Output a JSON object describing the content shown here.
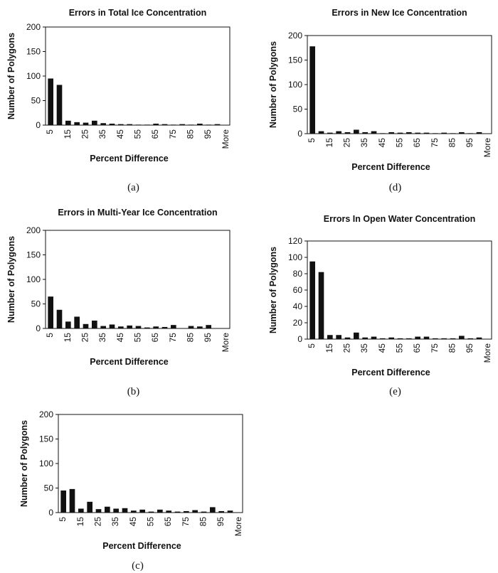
{
  "chart_data": [
    {
      "id": "a",
      "type": "bar",
      "title": "Errors in Total Ice Concentration",
      "xlabel": "Percent Difference",
      "ylabel": "Number of Polygons",
      "caption": "(a)",
      "ylim": [
        0,
        200
      ],
      "yticks": [
        0,
        50,
        100,
        150,
        200
      ],
      "xticklabels": [
        "5",
        "15",
        "25",
        "35",
        "45",
        "55",
        "65",
        "75",
        "85",
        "95",
        "More"
      ],
      "categories": [
        "5",
        "10",
        "15",
        "20",
        "25",
        "30",
        "35",
        "40",
        "45",
        "50",
        "55",
        "60",
        "65",
        "70",
        "75",
        "80",
        "85",
        "90",
        "95",
        "100",
        "More"
      ],
      "values": [
        95,
        82,
        9,
        6,
        5,
        9,
        4,
        3,
        2,
        2,
        1,
        1,
        3,
        2,
        1,
        2,
        1,
        3,
        1,
        2,
        0
      ],
      "grid": false
    },
    {
      "id": "b",
      "type": "bar",
      "title": "Errors in Multi-Year Ice Concentration",
      "xlabel": "Percent Difference",
      "ylabel": "Number of Polygons",
      "caption": "(b)",
      "ylim": [
        0,
        200
      ],
      "yticks": [
        0,
        50,
        100,
        150,
        200
      ],
      "xticklabels": [
        "5",
        "15",
        "25",
        "35",
        "45",
        "55",
        "65",
        "75",
        "85",
        "95",
        "More"
      ],
      "categories": [
        "5",
        "10",
        "15",
        "20",
        "25",
        "30",
        "35",
        "40",
        "45",
        "50",
        "55",
        "60",
        "65",
        "70",
        "75",
        "80",
        "85",
        "90",
        "95",
        "100",
        "More"
      ],
      "values": [
        65,
        38,
        14,
        24,
        9,
        16,
        5,
        8,
        4,
        6,
        5,
        2,
        4,
        3,
        7,
        0,
        5,
        4,
        7,
        0,
        0
      ],
      "grid": false
    },
    {
      "id": "c",
      "type": "bar",
      "title": "",
      "xlabel": "Percent Difference",
      "ylabel": "Number of Polygons",
      "caption": "(c)",
      "ylim": [
        0,
        200
      ],
      "yticks": [
        0,
        50,
        100,
        150,
        200
      ],
      "xticklabels": [
        "5",
        "15",
        "25",
        "35",
        "45",
        "55",
        "65",
        "75",
        "85",
        "95",
        "More"
      ],
      "categories": [
        "5",
        "10",
        "15",
        "20",
        "25",
        "30",
        "35",
        "40",
        "45",
        "50",
        "55",
        "60",
        "65",
        "70",
        "75",
        "80",
        "85",
        "90",
        "95",
        "100",
        "More"
      ],
      "values": [
        45,
        48,
        8,
        22,
        7,
        12,
        8,
        9,
        4,
        6,
        2,
        6,
        4,
        2,
        3,
        5,
        2,
        11,
        3,
        4,
        0
      ],
      "grid": false
    },
    {
      "id": "d",
      "type": "bar",
      "title": "Errors in New Ice Concentration",
      "xlabel": "Percent Difference",
      "ylabel": "Number of Polygons",
      "caption": "(d)",
      "ylim": [
        0,
        200
      ],
      "yticks": [
        0,
        50,
        100,
        150,
        200
      ],
      "xticklabels": [
        "5",
        "15",
        "25",
        "35",
        "45",
        "55",
        "65",
        "75",
        "85",
        "95",
        "More"
      ],
      "categories": [
        "5",
        "10",
        "15",
        "20",
        "25",
        "30",
        "35",
        "40",
        "45",
        "50",
        "55",
        "60",
        "65",
        "70",
        "75",
        "80",
        "85",
        "90",
        "95",
        "100",
        "More"
      ],
      "values": [
        178,
        5,
        2,
        5,
        3,
        8,
        3,
        5,
        1,
        3,
        2,
        3,
        2,
        2,
        1,
        2,
        1,
        3,
        1,
        3,
        0
      ],
      "grid": false
    },
    {
      "id": "e",
      "type": "bar",
      "title": "Errors In Open Water Concentration",
      "xlabel": "Percent Difference",
      "ylabel": "Number of Polygons",
      "caption": "(e)",
      "ylim": [
        0,
        120
      ],
      "yticks": [
        0,
        20,
        40,
        60,
        80,
        100,
        120
      ],
      "xticklabels": [
        "5",
        "15",
        "25",
        "35",
        "45",
        "55",
        "65",
        "75",
        "85",
        "95",
        "More"
      ],
      "categories": [
        "5",
        "10",
        "15",
        "20",
        "25",
        "30",
        "35",
        "40",
        "45",
        "50",
        "55",
        "60",
        "65",
        "70",
        "75",
        "80",
        "85",
        "90",
        "95",
        "100",
        "More"
      ],
      "values": [
        95,
        82,
        5,
        5,
        2,
        8,
        2,
        3,
        1,
        2,
        1,
        1,
        3,
        3,
        1,
        1,
        1,
        4,
        1,
        2,
        0
      ],
      "grid": false
    }
  ]
}
